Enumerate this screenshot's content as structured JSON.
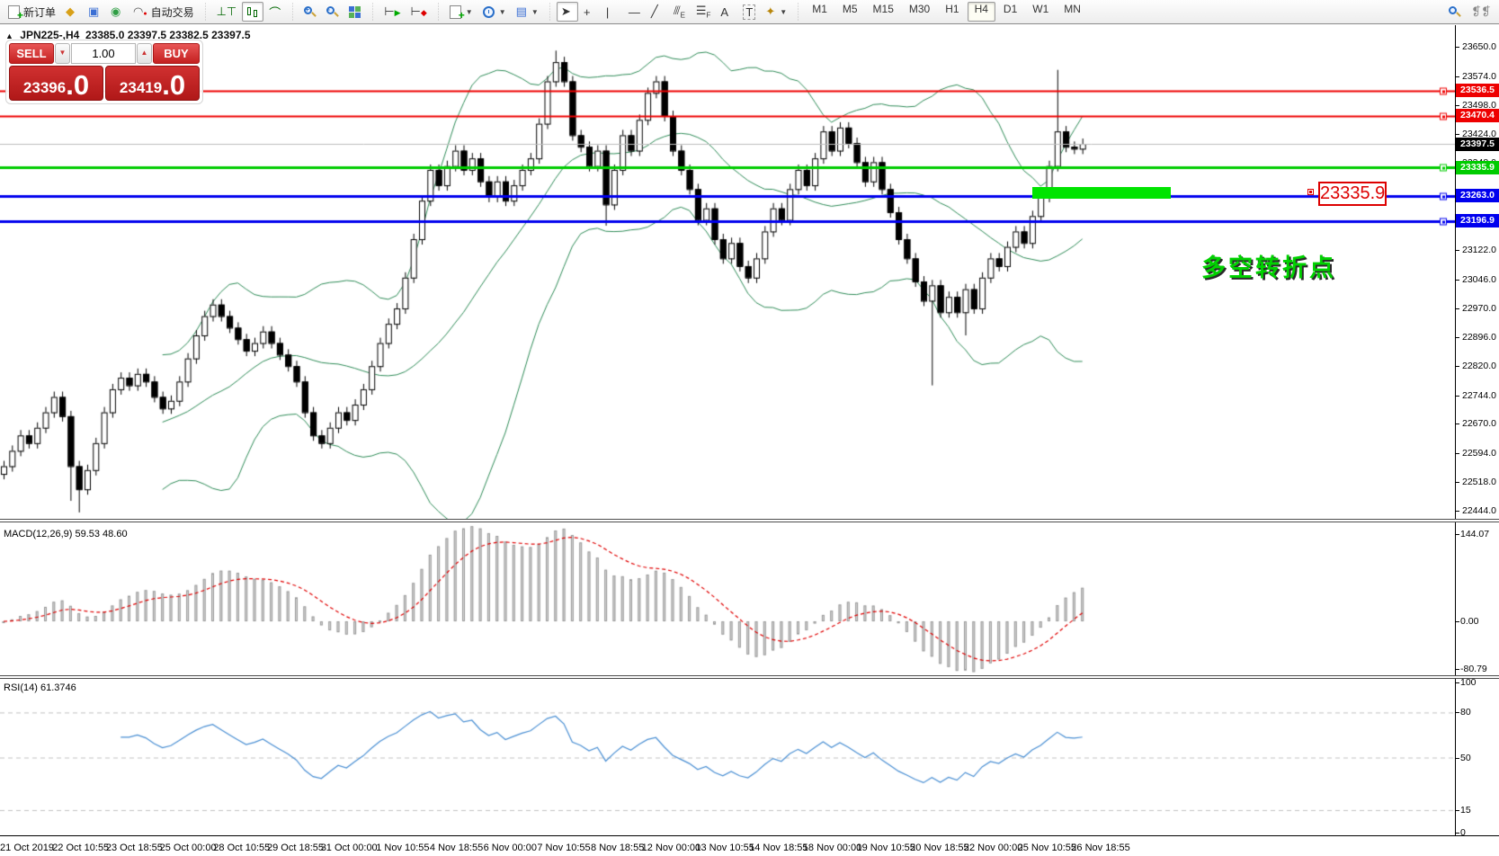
{
  "toolbar": {
    "new_order_label": "新订单",
    "autotrading_label": "自动交易",
    "timeframes": {
      "items": [
        "M1",
        "M5",
        "M15",
        "M30",
        "H1",
        "H4",
        "D1",
        "W1",
        "MN"
      ],
      "active": "H4"
    },
    "tool_letters": {
      "channel": "E",
      "fibonacci": "F",
      "text": "A",
      "label": "T"
    },
    "icons": {
      "new-order": "doc-plus",
      "history": "◆",
      "market-window": "▣",
      "broadcast": "◉",
      "autotrading": "cap",
      "bar-chart": "bars",
      "candlestick": "candles",
      "line-chart": "line",
      "zoom-in": "+",
      "zoom-out": "-",
      "tile-windows": "grid",
      "auto-scroll": "▶",
      "chart-shift": "◀",
      "new-chart": "chart-plus",
      "periods": "clock",
      "indicators": "∿",
      "cursor": "arrow",
      "crosshair": "+",
      "vertical-line": "|",
      "horizontal-line": "—",
      "trendline": "╱",
      "search": "magnifier",
      "chat": "bubbles"
    }
  },
  "chart": {
    "title_symbol": "JPN225-,H4",
    "title_ohlc": "23385.0 23397.5 23382.5 23397.5",
    "trade_panel": {
      "sell": "SELL",
      "buy": "BUY",
      "volume": "1.00",
      "sell_price": "23396",
      "sell_price_frac": ".0",
      "buy_price": "23419",
      "buy_price_frac": ".0"
    },
    "price_axis_ticks": [
      23650.0,
      23574.0,
      23498.0,
      23424.0,
      23348.0,
      23272.0,
      23196.0,
      23122.0,
      23046.0,
      22970.0,
      22896.0,
      22820.0,
      22744.0,
      22670.0,
      22594.0,
      22518.0,
      22444.0
    ],
    "hlines": [
      {
        "price": 23536.5,
        "label": "23536.5",
        "color": "#ee0000",
        "lw": 2,
        "is_price": false
      },
      {
        "price": 23470.4,
        "label": "23470.4",
        "color": "#ee0000",
        "lw": 2,
        "is_price": false
      },
      {
        "price": 23397.5,
        "label": "23397.5",
        "color": "#bdbdbd",
        "label_bg": "#000000",
        "lw": 1,
        "is_price": true
      },
      {
        "price": 23335.9,
        "label": "23335.9",
        "color": "#00cc00",
        "lw": 3,
        "is_price": false
      },
      {
        "price": 23263.0,
        "label": "23263.0",
        "color": "#0000ee",
        "lw": 3,
        "is_price": false
      },
      {
        "price": 23196.9,
        "label": "23196.9",
        "color": "#0000ee",
        "lw": 3,
        "is_price": false
      }
    ],
    "annotations": {
      "turning_point_text": "多空转折点",
      "price_callout": "23335.9",
      "highlight_color": "#00e400"
    },
    "time_axis": [
      "21 Oct 2019",
      "22 Oct 10:55",
      "23 Oct 18:55",
      "25 Oct 00:00",
      "28 Oct 10:55",
      "29 Oct 18:55",
      "31 Oct 00:00",
      "1 Nov 10:55",
      "4 Nov 18:55",
      "6 Nov 00:00",
      "7 Nov 10:55",
      "8 Nov 18:55",
      "12 Nov 00:00",
      "13 Nov 10:55",
      "14 Nov 18:55",
      "18 Nov 00:00",
      "19 Nov 10:55",
      "20 Nov 18:55",
      "22 Nov 00:00",
      "25 Nov 10:55",
      "26 Nov 18:55"
    ]
  },
  "macd_pane": {
    "label": "MACD(12,26,9) 59.53 48.60",
    "scale_top": "144.07",
    "scale_zero": "0.00",
    "scale_bottom": "-80.79"
  },
  "rsi_pane": {
    "label": "RSI(14) 61.3746",
    "scale": [
      "100",
      "80",
      "50",
      "15",
      "0"
    ],
    "levels": [
      80,
      50,
      15
    ]
  },
  "chart_data": [
    {
      "type": "candlestick",
      "name": "JPN225- H4",
      "ylim": [
        22444.0,
        23650.0
      ],
      "open_first": 22540,
      "closes": [
        22560,
        22600,
        22640,
        22620,
        22660,
        22700,
        22740,
        22690,
        22560,
        22500,
        22550,
        22620,
        22700,
        22760,
        22790,
        22770,
        22800,
        22780,
        22740,
        22710,
        22730,
        22780,
        22840,
        22900,
        22950,
        22980,
        22950,
        22920,
        22890,
        22860,
        22880,
        22910,
        22880,
        22850,
        22820,
        22780,
        22700,
        22640,
        22620,
        22660,
        22700,
        22680,
        22720,
        22760,
        22820,
        22880,
        22930,
        22970,
        23050,
        23150,
        23250,
        23330,
        23290,
        23340,
        23380,
        23330,
        23360,
        23300,
        23260,
        23300,
        23250,
        23290,
        23330,
        23360,
        23450,
        23560,
        23610,
        23560,
        23420,
        23390,
        23340,
        23380,
        23240,
        23330,
        23420,
        23380,
        23460,
        23530,
        23560,
        23470,
        23380,
        23330,
        23280,
        23200,
        23230,
        23150,
        23100,
        23140,
        23080,
        23050,
        23100,
        23170,
        23230,
        23200,
        23280,
        23330,
        23290,
        23360,
        23430,
        23380,
        23440,
        23400,
        23350,
        23300,
        23350,
        23280,
        23220,
        23150,
        23100,
        23040,
        22990,
        23030,
        22960,
        23000,
        22960,
        23020,
        22970,
        23050,
        23100,
        23080,
        23130,
        23170,
        23140,
        23210,
        23260,
        23340,
        23430,
        23390,
        23385,
        23397.5
      ],
      "wick_default": 14,
      "wick_overrides": {
        "8": {
          "low": 22470
        },
        "9": {
          "low": 22440
        },
        "66": {
          "high": 23640
        },
        "72": {
          "low": 23185
        },
        "111": {
          "low": 22770
        },
        "115": {
          "low": 22900
        },
        "126": {
          "high": 23590
        }
      },
      "last_bar": {
        "open": 23385.0,
        "high": 23397.5,
        "low": 23382.5,
        "close": 23397.5
      },
      "overlay": {
        "name": "Bollinger Bands",
        "period": 20,
        "deviation": 2,
        "color": "#2E8B57"
      }
    },
    {
      "type": "bar",
      "name": "MACD",
      "params": [
        12,
        26,
        9
      ],
      "derived_from": "closes",
      "current_values": [
        59.53,
        48.6
      ],
      "ylim": [
        -80.79,
        144.07
      ],
      "colors": {
        "histogram": "#d8d8d8",
        "signal": "#e00000"
      }
    },
    {
      "type": "line",
      "name": "RSI",
      "params": [
        14
      ],
      "derived_from": "closes",
      "current_value": 61.3746,
      "levels": [
        80,
        50,
        15
      ],
      "ylim": [
        0,
        100
      ],
      "colors": {
        "line": "#4a8fd3",
        "levels": "#c0c0c0"
      }
    }
  ]
}
